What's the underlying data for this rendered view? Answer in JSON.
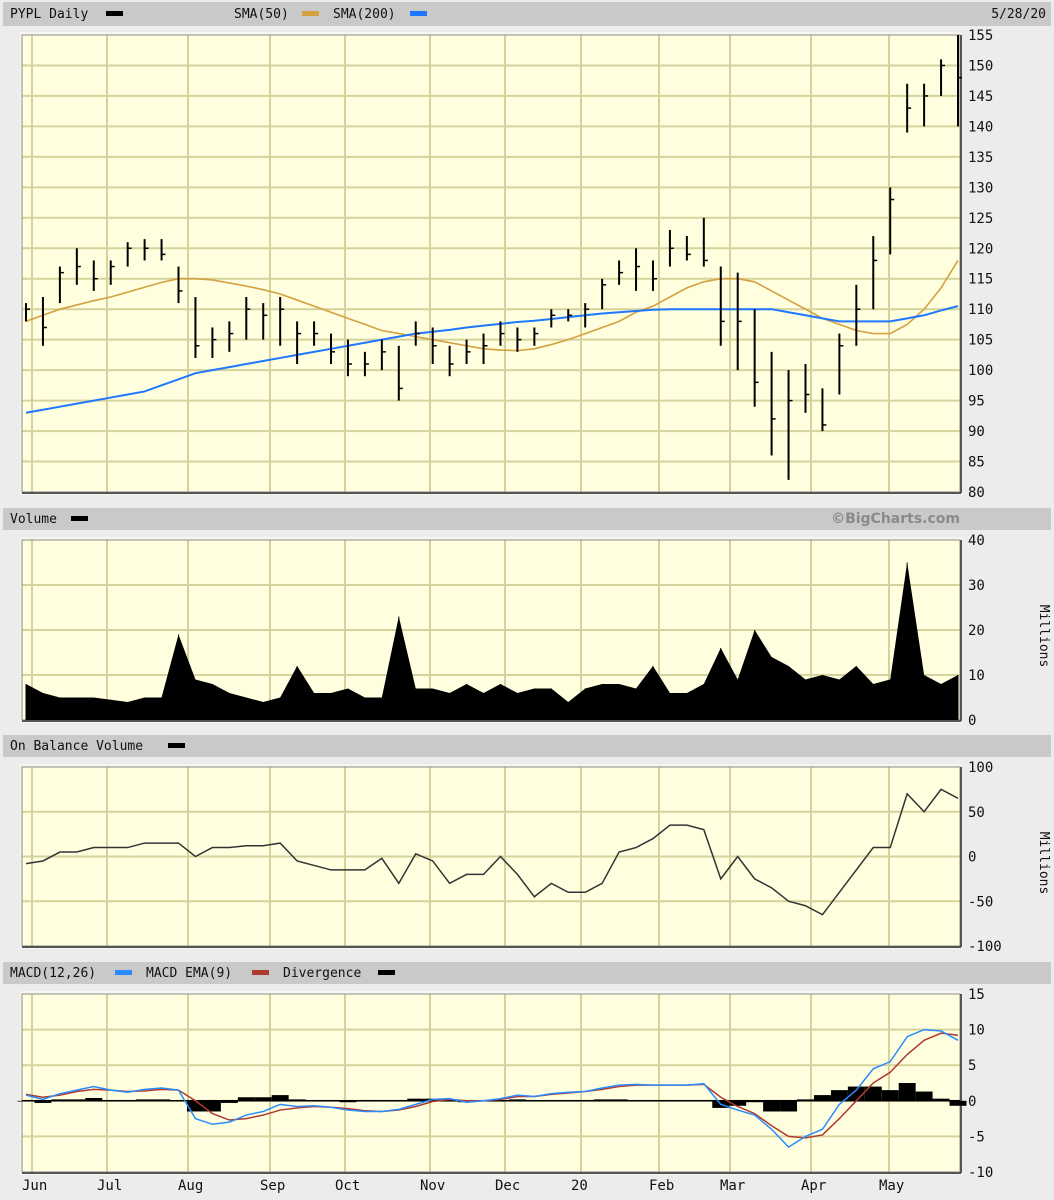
{
  "header": {
    "symbol_label": "PYPL Daily",
    "sma50_label": "SMA(50)",
    "sma200_label": "SMA(200)",
    "date": "5/28/20"
  },
  "volume_header": {
    "label": "Volume",
    "copyright": "©BigCharts.com"
  },
  "obv_header": {
    "label": "On Balance Volume"
  },
  "macd_header": {
    "macd_label": "MACD(12,26)",
    "ema_label": "MACD EMA(9)",
    "div_label": "Divergence"
  },
  "colors": {
    "price": "#000000",
    "sma50": "#d4a040",
    "sma200": "#1e78ff",
    "macd": "#2a8cff",
    "ema": "#b03a2e",
    "divergence": "#000000"
  },
  "chart_data": [
    {
      "type": "ohlc",
      "title": "PYPL Daily",
      "ylim": [
        80,
        155
      ],
      "yticks": [
        "155",
        "150",
        "145",
        "140",
        "135",
        "130",
        "125",
        "120",
        "115",
        "110",
        "105",
        "100",
        "95",
        "90",
        "85",
        "80"
      ],
      "x_tick_labels": [
        "Jun",
        "Jul",
        "Aug",
        "Sep",
        "Oct",
        "Nov",
        "Dec",
        "20",
        "Feb",
        "Mar",
        "Apr",
        "May"
      ],
      "grid": true,
      "bars": [
        [
          111,
          108,
          110
        ],
        [
          112,
          104,
          107
        ],
        [
          117,
          111,
          116
        ],
        [
          120,
          114,
          117
        ],
        [
          118,
          113,
          115
        ],
        [
          118,
          114,
          117
        ],
        [
          121,
          117,
          120
        ],
        [
          121.5,
          118,
          120
        ],
        [
          121.5,
          118,
          119
        ],
        [
          117,
          111,
          113
        ],
        [
          112,
          102,
          104
        ],
        [
          107,
          102,
          105
        ],
        [
          108,
          103,
          106
        ],
        [
          112,
          105,
          110
        ],
        [
          111,
          105,
          109
        ],
        [
          112,
          104,
          110
        ],
        [
          108,
          101,
          106
        ],
        [
          108,
          104,
          106
        ],
        [
          106,
          101,
          103
        ],
        [
          105,
          99,
          101
        ],
        [
          103,
          99,
          101
        ],
        [
          105,
          100,
          103
        ],
        [
          104,
          95,
          97
        ],
        [
          108,
          104,
          106
        ],
        [
          107,
          101,
          104
        ],
        [
          104,
          99,
          101
        ],
        [
          105,
          101,
          103
        ],
        [
          106,
          101,
          104
        ],
        [
          108,
          104,
          106
        ],
        [
          107,
          103,
          105
        ],
        [
          107,
          104,
          106
        ],
        [
          110,
          107,
          109
        ],
        [
          110,
          108,
          109
        ],
        [
          111,
          107,
          110
        ],
        [
          115,
          110,
          114
        ],
        [
          118,
          114,
          116
        ],
        [
          120,
          113,
          117
        ],
        [
          118,
          113,
          115
        ],
        [
          123,
          117,
          120
        ],
        [
          122,
          118,
          119
        ],
        [
          125,
          117,
          118
        ],
        [
          117,
          104,
          108
        ],
        [
          116,
          100,
          108
        ],
        [
          110,
          94,
          98
        ],
        [
          103,
          86,
          92
        ],
        [
          100,
          82,
          95
        ],
        [
          101,
          93,
          96
        ],
        [
          97,
          90,
          91
        ],
        [
          106,
          96,
          104
        ],
        [
          114,
          104,
          110
        ],
        [
          122,
          110,
          118
        ],
        [
          130,
          119,
          128
        ],
        [
          147,
          139,
          143
        ],
        [
          147,
          140,
          145
        ],
        [
          151,
          145,
          150
        ],
        [
          155,
          140,
          148
        ]
      ],
      "series": [
        {
          "name": "SMA(50)",
          "values": [
            108,
            109,
            110,
            110.7,
            111.4,
            112,
            112.8,
            113.6,
            114.4,
            115,
            115,
            114.8,
            114.3,
            113.8,
            113.2,
            112.5,
            111.5,
            110.5,
            109.5,
            108.5,
            107.5,
            106.5,
            106,
            105.5,
            105,
            104.5,
            104,
            103.5,
            103.3,
            103.2,
            103.5,
            104.2,
            105,
            106,
            107,
            108,
            109.5,
            110.5,
            112,
            113.5,
            114.5,
            115,
            115,
            114.5,
            113,
            111.5,
            110,
            108.5,
            107.5,
            106.5,
            106,
            106,
            107.5,
            110,
            113.5,
            118
          ]
        },
        {
          "name": "SMA(200)",
          "values": [
            93,
            93.5,
            94,
            94.5,
            95,
            95.5,
            96,
            96.5,
            97.5,
            98.5,
            99.5,
            100,
            100.5,
            101,
            101.5,
            102,
            102.5,
            103,
            103.5,
            104,
            104.5,
            105,
            105.5,
            106,
            106.3,
            106.6,
            107,
            107.3,
            107.6,
            107.9,
            108.1,
            108.4,
            108.7,
            109,
            109.3,
            109.5,
            109.7,
            109.9,
            110,
            110,
            110,
            110,
            110,
            110,
            110,
            109.5,
            109,
            108.5,
            108,
            108,
            108,
            108,
            108.5,
            109,
            109.8,
            110.5
          ]
        }
      ]
    },
    {
      "type": "area",
      "title": "Volume",
      "ylabel": "Millions",
      "ylim": [
        0,
        40
      ],
      "yticks": [
        "40",
        "30",
        "20",
        "10",
        "0"
      ],
      "values": [
        8,
        6,
        5,
        5,
        5,
        4.5,
        4,
        5,
        5,
        19,
        9,
        8,
        6,
        5,
        4,
        5,
        12,
        6,
        6,
        7,
        5,
        5,
        23,
        7,
        7,
        6,
        8,
        6,
        8,
        6,
        7,
        7,
        4,
        7,
        8,
        8,
        7,
        12,
        6,
        6,
        8,
        16,
        9,
        20,
        14,
        12,
        9,
        10,
        9,
        12,
        8,
        9,
        35,
        10,
        8,
        10
      ]
    },
    {
      "type": "line",
      "title": "On Balance Volume",
      "ylabel": "Millions",
      "ylim": [
        -100,
        100
      ],
      "yticks": [
        "100",
        "50",
        "0",
        "-50",
        "-100"
      ],
      "values": [
        -8,
        -5,
        5,
        5,
        10,
        10,
        10,
        15,
        15,
        15,
        0,
        10,
        10,
        12,
        12,
        15,
        -5,
        -10,
        -15,
        -15,
        -15,
        -2,
        -30,
        3,
        -5,
        -30,
        -20,
        -20,
        0,
        -20,
        -45,
        -30,
        -40,
        -40,
        -30,
        5,
        10,
        20,
        35,
        35,
        30,
        -25,
        0,
        -25,
        -35,
        -50,
        -55,
        -65,
        -40,
        -15,
        10,
        10,
        70,
        50,
        75,
        65
      ]
    },
    {
      "type": "line",
      "title": "MACD(12,26)",
      "ylim": [
        -10,
        15
      ],
      "yticks": [
        "15",
        "10",
        "5",
        "0",
        "-5",
        "-10"
      ],
      "series": [
        {
          "name": "MACD(12,26)",
          "values": [
            0.8,
            0.2,
            1,
            1.5,
            2,
            1.5,
            1.2,
            1.6,
            1.8,
            1.5,
            -2.5,
            -3.3,
            -3,
            -2,
            -1.5,
            -0.5,
            -0.8,
            -0.7,
            -0.9,
            -1.3,
            -1.5,
            -1.5,
            -1.2,
            -0.5,
            0.2,
            0.3,
            -0.2,
            0,
            0.3,
            0.8,
            0.6,
            1,
            1.2,
            1.3,
            1.8,
            2.2,
            2.3,
            2.2,
            2.2,
            2.2,
            2.4,
            -0.5,
            -1.3,
            -2,
            -4,
            -6.5,
            -5,
            -4,
            -0.5,
            1.5,
            4.5,
            5.5,
            9,
            10,
            9.8,
            8.5
          ]
        },
        {
          "name": "MACD EMA(9)",
          "values": [
            0.9,
            0.5,
            0.8,
            1.3,
            1.6,
            1.5,
            1.3,
            1.4,
            1.6,
            1.5,
            0,
            -1.8,
            -2.7,
            -2.5,
            -2,
            -1.3,
            -1,
            -0.8,
            -0.9,
            -1.1,
            -1.4,
            -1.5,
            -1.3,
            -0.8,
            -0.1,
            0.2,
            0,
            0,
            0.2,
            0.6,
            0.6,
            0.9,
            1.1,
            1.3,
            1.6,
            2,
            2.2,
            2.2,
            2.2,
            2.2,
            2.3,
            0.5,
            -0.8,
            -1.8,
            -3.5,
            -5,
            -5.2,
            -4.8,
            -2.5,
            0,
            2.5,
            4,
            6.5,
            8.5,
            9.5,
            9.2
          ]
        },
        {
          "name": "Divergence",
          "values": [
            -0.1,
            -0.3,
            0.2,
            0.2,
            0.4,
            0,
            -0.1,
            0.2,
            0.2,
            0,
            -1.5,
            -1.5,
            -0.3,
            0.5,
            0.5,
            0.8,
            0.2,
            0.1,
            0,
            -0.2,
            -0.1,
            0,
            0.1,
            0.3,
            0.3,
            0.1,
            -0.2,
            0,
            0.1,
            0.2,
            0,
            0.1,
            0.1,
            0,
            0.2,
            0.2,
            0.1,
            0,
            0,
            0,
            0.1,
            -1,
            -0.7,
            -0.2,
            -1.5,
            -1.5,
            0.2,
            0.8,
            1.5,
            2,
            2,
            1.5,
            2.5,
            1.3,
            0.3,
            -0.7
          ]
        }
      ]
    }
  ]
}
